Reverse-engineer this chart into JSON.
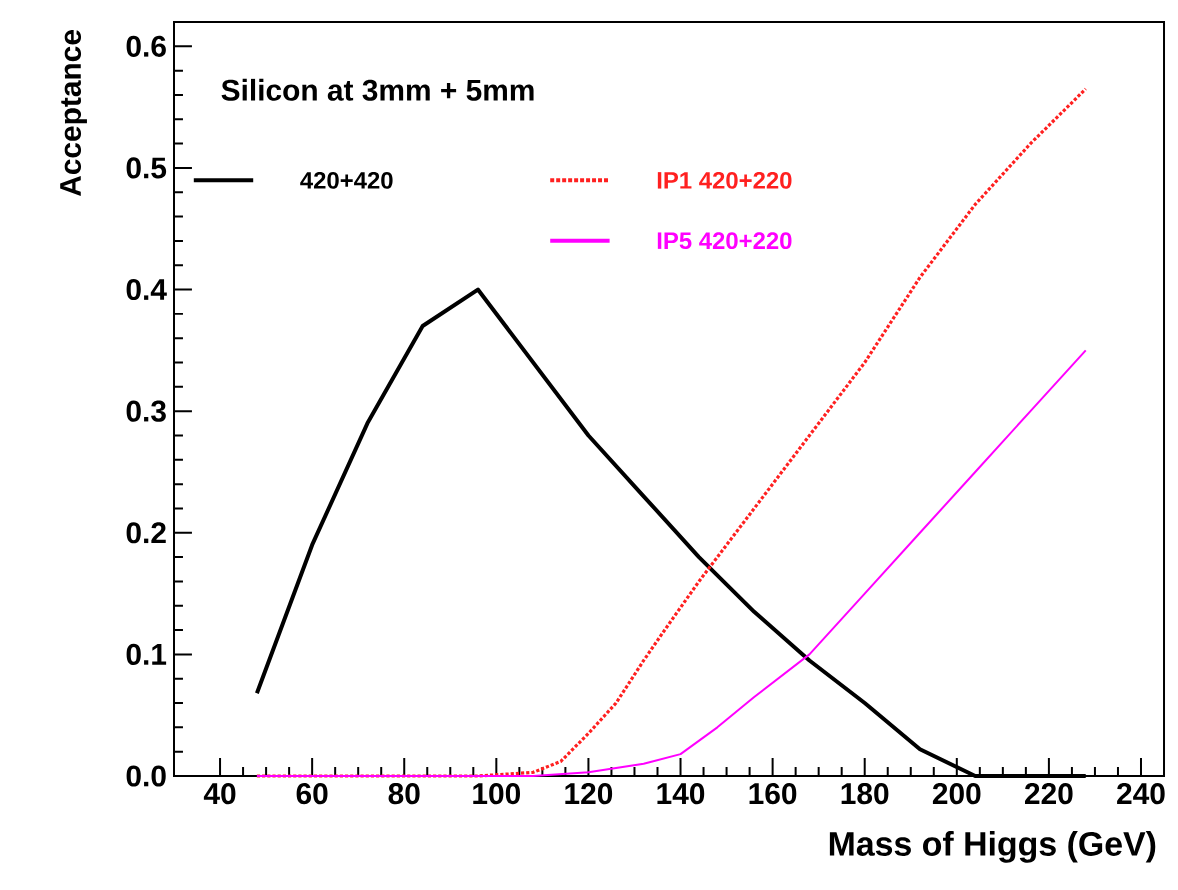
{
  "chart_data": {
    "type": "line",
    "xlabel": "Mass of Higgs (GeV)",
    "ylabel": "Acceptance",
    "legend_title": "Silicon at 3mm + 5mm",
    "legend": "top left",
    "xlim": [
      30,
      245
    ],
    "ylim": [
      0,
      0.62
    ],
    "xticks": [
      40,
      60,
      80,
      100,
      120,
      140,
      160,
      180,
      200,
      220,
      240
    ],
    "yticks": [
      {
        "value": 0,
        "label": "0.0"
      },
      0.1,
      0.2,
      0.3,
      0.4,
      0.5,
      0.6
    ],
    "grid": false,
    "series": [
      {
        "name": "420+420",
        "color": "#000000",
        "line_style": "solid",
        "x": [
          48,
          60,
          72,
          84,
          96,
          108,
          120,
          132,
          144,
          156,
          168,
          180,
          192,
          204,
          216,
          228
        ],
        "values": [
          0.068,
          0.19,
          0.29,
          0.37,
          0.4,
          0.34,
          0.28,
          0.23,
          0.18,
          0.135,
          0.095,
          0.06,
          0.022,
          0,
          0,
          0
        ]
      },
      {
        "name": "IP1 420+220",
        "color": "#ff2020",
        "line_style": "dotted",
        "x": [
          48,
          96,
          108,
          114,
          120,
          126,
          132,
          136,
          144,
          156,
          168,
          180,
          192,
          204,
          216,
          228
        ],
        "values": [
          0,
          0,
          0.003,
          0.012,
          0.035,
          0.06,
          0.095,
          0.117,
          0.16,
          0.22,
          0.28,
          0.34,
          0.41,
          0.47,
          0.52,
          0.565
        ]
      },
      {
        "name": "IP5 420+220",
        "color": "#ff00ff",
        "line_style": "solid",
        "x": [
          48,
          108,
          120,
          132,
          140,
          148,
          156,
          168,
          180,
          192,
          204,
          216,
          228
        ],
        "values": [
          0,
          0,
          0.003,
          0.01,
          0.018,
          0.04,
          0.065,
          0.1,
          0.15,
          0.2,
          0.25,
          0.3,
          0.35
        ]
      }
    ]
  }
}
